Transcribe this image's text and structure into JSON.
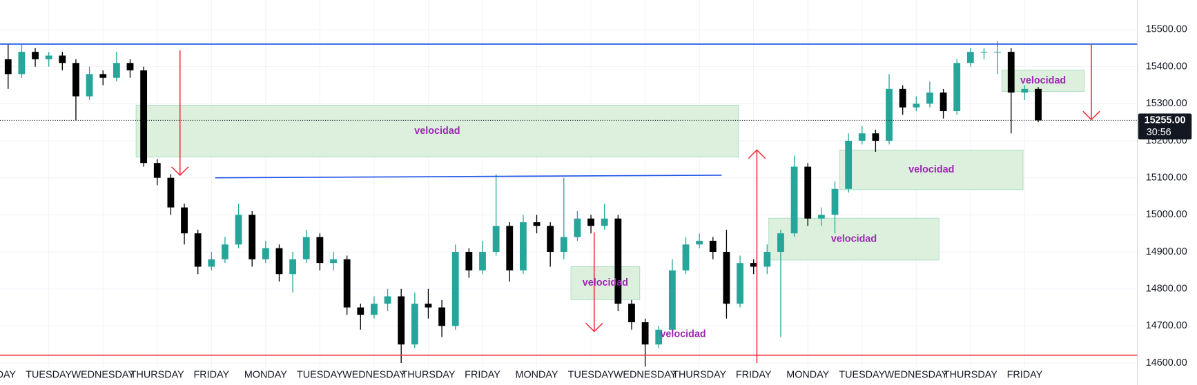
{
  "chart_data": {
    "type": "candlestick",
    "up_color": "#26a69a",
    "down_color": "#000000",
    "grid": true,
    "grid_color": "#f0f3fa",
    "xlim": [
      0.1,
      21.08
    ],
    "ylim": [
      14590,
      15580
    ],
    "xticks": [
      {
        "value": 0,
        "label": "MONDAY"
      },
      {
        "value": 1,
        "label": "TUESDAY"
      },
      {
        "value": 2,
        "label": "WEDNESDAY"
      },
      {
        "value": 3,
        "label": "THURSDAY"
      },
      {
        "value": 4,
        "label": "FRIDAY"
      },
      {
        "value": 5,
        "label": "MONDAY"
      },
      {
        "value": 6,
        "label": "TUESDAY"
      },
      {
        "value": 7,
        "label": "WEDNESDAY"
      },
      {
        "value": 8,
        "label": "THURSDAY"
      },
      {
        "value": 9,
        "label": "FRIDAY"
      },
      {
        "value": 10,
        "label": "MONDAY"
      },
      {
        "value": 11,
        "label": "TUESDAY"
      },
      {
        "value": 12,
        "label": "WEDNESDAY"
      },
      {
        "value": 13,
        "label": "THURSDAY"
      },
      {
        "value": 14,
        "label": "FRIDAY"
      },
      {
        "value": 15,
        "label": "MONDAY"
      },
      {
        "value": 16,
        "label": "TUESDAY"
      },
      {
        "value": 17,
        "label": "WEDNESDAY"
      },
      {
        "value": 18,
        "label": "THURSDAY"
      },
      {
        "value": 19,
        "label": "FRIDAY"
      }
    ],
    "yticks": [
      {
        "value": 14600,
        "label": "14600.00"
      },
      {
        "value": 14700,
        "label": "14700.00"
      },
      {
        "value": 14800,
        "label": "14800.00"
      },
      {
        "value": 14900,
        "label": "14900.00"
      },
      {
        "value": 15000,
        "label": "15000.00"
      },
      {
        "value": 15100,
        "label": "15100.00"
      },
      {
        "value": 15200,
        "label": "15200.00"
      },
      {
        "value": 15300,
        "label": "15300.00"
      },
      {
        "value": 15400,
        "label": "15400.00"
      },
      {
        "value": 15500,
        "label": "15500.00"
      }
    ],
    "x": [
      0.25,
      0.5,
      0.75,
      1,
      1.25,
      1.5,
      1.75,
      2,
      2.25,
      2.5,
      2.75,
      3,
      3.25,
      3.5,
      3.75,
      4,
      4.25,
      4.5,
      4.75,
      5,
      5.25,
      5.5,
      5.75,
      6,
      6.25,
      6.5,
      6.75,
      7,
      7.25,
      7.5,
      7.75,
      8,
      8.25,
      8.5,
      8.75,
      9,
      9.25,
      9.5,
      9.75,
      10,
      10.25,
      10.5,
      10.75,
      11,
      11.25,
      11.5,
      11.75,
      12,
      12.25,
      12.5,
      12.75,
      13,
      13.25,
      13.5,
      13.75,
      14,
      14.25,
      14.5,
      14.75,
      15,
      15.25,
      15.5,
      15.75,
      16,
      16.25,
      16.5,
      16.75,
      17,
      17.25,
      17.5,
      17.75,
      18,
      18.25,
      18.5,
      18.75,
      19,
      19.25
    ],
    "open": [
      15420,
      15380,
      15440,
      15420,
      15430,
      15410,
      15320,
      15380,
      15370,
      15410,
      15390,
      15140,
      15100,
      15020,
      14950,
      14860,
      14880,
      14920,
      15000,
      14880,
      14910,
      14840,
      14880,
      14940,
      14870,
      14880,
      14750,
      14730,
      14760,
      14780,
      14650,
      14760,
      14750,
      14700,
      14900,
      14850,
      14900,
      14970,
      14850,
      14980,
      14970,
      14900,
      14940,
      14990,
      14970,
      14990,
      14760,
      14710,
      14650,
      14690,
      14850,
      14920,
      14930,
      14900,
      14760,
      14870,
      14860,
      14900,
      14950,
      15130,
      14990,
      15000,
      15070,
      15200,
      15220,
      15200,
      15340,
      15290,
      15300,
      15330,
      15280,
      15410,
      15440,
      15440,
      15440,
      15330,
      15340
    ],
    "high": [
      15460,
      15460,
      15450,
      15440,
      15440,
      15420,
      15400,
      15390,
      15440,
      15420,
      15400,
      15150,
      15110,
      15030,
      14960,
      14900,
      14940,
      15030,
      15010,
      14930,
      14920,
      14900,
      14960,
      14950,
      14900,
      14890,
      14760,
      14780,
      14800,
      14800,
      14790,
      14800,
      14770,
      14920,
      14910,
      14930,
      15110,
      14980,
      15000,
      15000,
      14980,
      15100,
      15010,
      15000,
      15030,
      15000,
      14770,
      14720,
      14700,
      14880,
      14940,
      14950,
      14940,
      14960,
      14890,
      14880,
      14920,
      14960,
      15160,
      15140,
      15020,
      15090,
      15220,
      15240,
      15230,
      15380,
      15350,
      15320,
      15360,
      15340,
      15420,
      15450,
      15450,
      15470,
      15450,
      15350,
      15345
    ],
    "low": [
      15340,
      15370,
      15400,
      15400,
      15390,
      15255,
      15310,
      15350,
      15360,
      15370,
      15130,
      15080,
      15000,
      14920,
      14840,
      14850,
      14870,
      14910,
      14860,
      14870,
      14820,
      14790,
      14870,
      14850,
      14850,
      14730,
      14690,
      14720,
      14740,
      14600,
      14640,
      14720,
      14670,
      14690,
      14830,
      14840,
      14890,
      14820,
      14840,
      14950,
      14860,
      14880,
      14930,
      14950,
      14960,
      14740,
      14690,
      14590,
      14640,
      14680,
      14840,
      14910,
      14880,
      14720,
      14750,
      14840,
      14840,
      14670,
      14940,
      14970,
      14970,
      14950,
      15060,
      15190,
      15170,
      15190,
      15270,
      15280,
      15290,
      15260,
      15270,
      15400,
      15420,
      15380,
      15220,
      15310,
      15250
    ],
    "close": [
      15380,
      15440,
      15420,
      15430,
      15410,
      15320,
      15380,
      15370,
      15410,
      15390,
      15140,
      15100,
      15020,
      14950,
      14860,
      14880,
      14920,
      15000,
      14880,
      14910,
      14840,
      14880,
      14940,
      14870,
      14880,
      14750,
      14730,
      14760,
      14780,
      14650,
      14760,
      14750,
      14700,
      14900,
      14850,
      14900,
      14970,
      14850,
      14980,
      14970,
      14900,
      14940,
      14990,
      14970,
      14990,
      14760,
      14710,
      14650,
      14690,
      14850,
      14920,
      14930,
      14900,
      14760,
      14870,
      14860,
      14900,
      14950,
      15130,
      14990,
      15000,
      15070,
      15200,
      15220,
      15200,
      15340,
      15290,
      15300,
      15330,
      15280,
      15410,
      15440,
      15440,
      15440,
      15330,
      15340,
      15255
    ],
    "hlines": [
      {
        "value": 15461,
        "color": "#1e53e5"
      },
      {
        "value": 14621,
        "color": "#f23645"
      }
    ],
    "trendlines": [
      {
        "x": [
          4.07,
          13.41
        ],
        "y": [
          15100,
          15107
        ],
        "color": "#1e53e5"
      }
    ],
    "zones": [
      {
        "label": "velocidad",
        "x": [
          2.61,
          13.72
        ],
        "y": [
          15156,
          15296
        ]
      },
      {
        "label": "velocidad",
        "x": [
          15.59,
          18.97
        ],
        "y": [
          15068,
          15175
        ]
      },
      {
        "label": "velocidad",
        "x": [
          14.28,
          17.42
        ],
        "y": [
          14878,
          14991
        ]
      },
      {
        "label": "velocidad",
        "x": [
          10.63,
          11.9
        ],
        "y": [
          14771,
          14860
        ]
      },
      {
        "label": "velocidad",
        "x": [
          18.58,
          20.1
        ],
        "y": [
          15333,
          15391
        ]
      }
    ],
    "zone_color": "#d8eed9",
    "label_color": "#9c27b0",
    "annotations": [
      {
        "text": "velocidad",
        "x": 12.7,
        "y": 14677
      }
    ],
    "arrows": [
      {
        "x": 3.42,
        "from": 15444,
        "to": 15107
      },
      {
        "x": 11.06,
        "from": 14953,
        "to": 14685
      },
      {
        "x": 14.06,
        "from": 14600,
        "to": 15175
      },
      {
        "x": 20.23,
        "from": 15461,
        "to": 15257
      }
    ],
    "arrow_color": "#f23645",
    "last_price": {
      "value": 15255,
      "label": "15255.00"
    },
    "countdown": "30:56"
  }
}
